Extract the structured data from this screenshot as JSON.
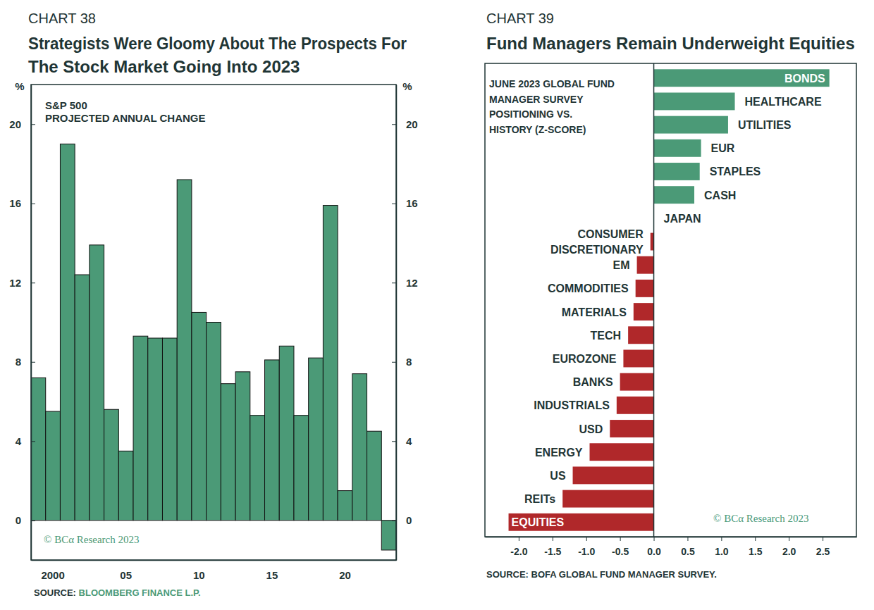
{
  "chart_data": [
    {
      "type": "bar",
      "chart_label": "CHART 38",
      "title": "Strategists Were Gloomy About The Prospects For The Stock Market Going Into 2023",
      "annotations": [
        "S&P 500",
        "PROJECTED ANNUAL CHANGE"
      ],
      "ylabel": "%",
      "categories": [
        null,
        "2000",
        null,
        null,
        null,
        null,
        "05",
        null,
        null,
        null,
        null,
        "10",
        null,
        null,
        null,
        null,
        "15",
        null,
        null,
        null,
        null,
        "20",
        null,
        null,
        null
      ],
      "values": [
        7.2,
        5.5,
        19.0,
        12.4,
        13.9,
        5.6,
        3.5,
        9.3,
        9.2,
        9.2,
        17.2,
        10.5,
        10.0,
        6.9,
        7.5,
        5.3,
        8.1,
        8.8,
        5.3,
        8.2,
        15.9,
        1.5,
        7.4,
        4.5,
        -1.5
      ],
      "color": "#4b9a77",
      "ylim": [
        -2,
        22
      ],
      "yticks": [
        0,
        4,
        8,
        12,
        16,
        20
      ],
      "credit": "© BCα Research 2023",
      "source_label": "SOURCE:",
      "source": "BLOOMBERG FINANCE L.P."
    },
    {
      "type": "bar",
      "orientation": "horizontal",
      "chart_label": "CHART 39",
      "title": "Fund Managers Remain Underweight Equities",
      "annotations": [
        "JUNE 2023 GLOBAL FUND",
        "MANAGER SURVEY",
        "POSITIONING VS.",
        "HISTORY (Z-SCORE)"
      ],
      "categories": [
        "BONDS",
        "HEALTHCARE",
        "UTILITIES",
        "EUR",
        "STAPLES",
        "CASH",
        "JAPAN",
        "CONSUMER DISCRETIONARY",
        "EM",
        "COMMODITIES",
        "MATERIALS",
        "TECH",
        "EUROZONE",
        "BANKS",
        "INDUSTRIALS",
        "USD",
        "ENERGY",
        "US",
        "REITs",
        "EQUITIES"
      ],
      "values": [
        2.6,
        1.2,
        1.1,
        0.7,
        0.68,
        0.6,
        0,
        -0.05,
        -0.25,
        -0.27,
        -0.3,
        -0.38,
        -0.45,
        -0.5,
        -0.55,
        -0.65,
        -0.95,
        -1.2,
        -1.35,
        -2.15
      ],
      "colors": [
        "#4b9a77",
        "#4b9a77",
        "#4b9a77",
        "#4b9a77",
        "#4b9a77",
        "#4b9a77",
        "#4b9a77",
        "#b0282a",
        "#b0282a",
        "#b0282a",
        "#b0282a",
        "#b0282a",
        "#b0282a",
        "#b0282a",
        "#b0282a",
        "#b0282a",
        "#b0282a",
        "#b0282a",
        "#b0282a",
        "#b0282a"
      ],
      "xlim": [
        -2.5,
        3
      ],
      "xticks": [
        {
          "value": -2,
          "label": "-2.0"
        },
        -1.5,
        {
          "value": -1,
          "label": "-1.0"
        },
        -0.5,
        {
          "value": 0,
          "label": "0.0"
        },
        0.5,
        {
          "value": 1,
          "label": "1.0"
        },
        1.5,
        {
          "value": 2,
          "label": "2.0"
        },
        2.5
      ],
      "credit": "© BCα Research 2023",
      "source_label": "SOURCE:",
      "source": "BOFA GLOBAL FUND MANAGER SURVEY."
    }
  ]
}
